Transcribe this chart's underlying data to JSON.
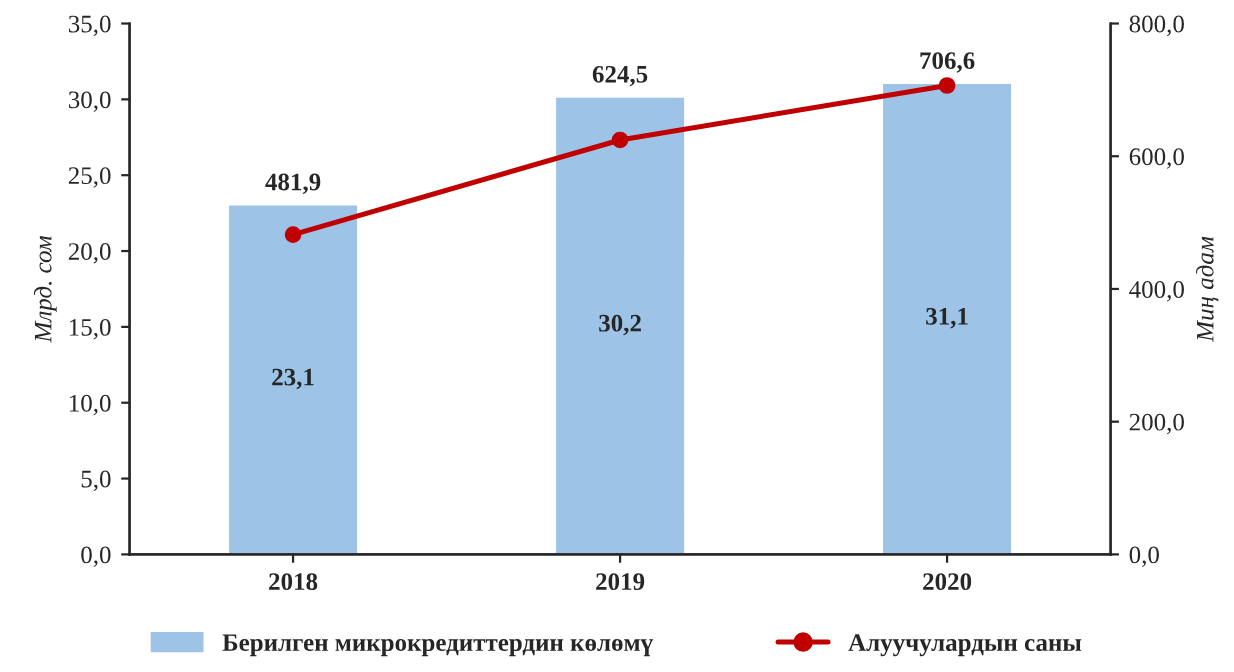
{
  "chart_data": {
    "type": "bar",
    "categories": [
      "2018",
      "2019",
      "2020"
    ],
    "ylabel": "Млрд. сом",
    "y2label": "Миң адам",
    "series": [
      {
        "name": "Берилген микрокредиттердин көлөмү",
        "color": "#9dc3e6",
        "values": [
          23.1,
          30.2,
          31.1
        ],
        "value_labels": [
          "23,1",
          "30,2",
          "31,1"
        ]
      },
      {
        "name": "Алуучулардын саны",
        "type": "line",
        "axis": "y2",
        "color": "#c00000",
        "marker": "circle",
        "values": [
          481.9,
          624.5,
          706.6
        ],
        "value_labels": [
          "481,9",
          "624,5",
          "706,6"
        ]
      }
    ],
    "ylim": [
      0,
      35
    ],
    "yticks": [
      {
        "value": 0,
        "label": "0,0"
      },
      {
        "value": 5,
        "label": "5,0"
      },
      {
        "value": 10,
        "label": "10,0"
      },
      {
        "value": 15,
        "label": "15,0"
      },
      {
        "value": 20,
        "label": "20,0"
      },
      {
        "value": 25,
        "label": "25,0"
      },
      {
        "value": 30,
        "label": "30,0"
      },
      {
        "value": 35,
        "label": "35,0"
      }
    ],
    "y2lim": [
      0,
      800
    ],
    "y2ticks": [
      {
        "value": 0,
        "label": "0,0"
      },
      {
        "value": 200,
        "label": "200,0"
      },
      {
        "value": 400,
        "label": "400,0"
      },
      {
        "value": 600,
        "label": "600,0"
      },
      {
        "value": 800,
        "label": "800,0"
      }
    ],
    "legend": "bottom",
    "grid": false
  }
}
